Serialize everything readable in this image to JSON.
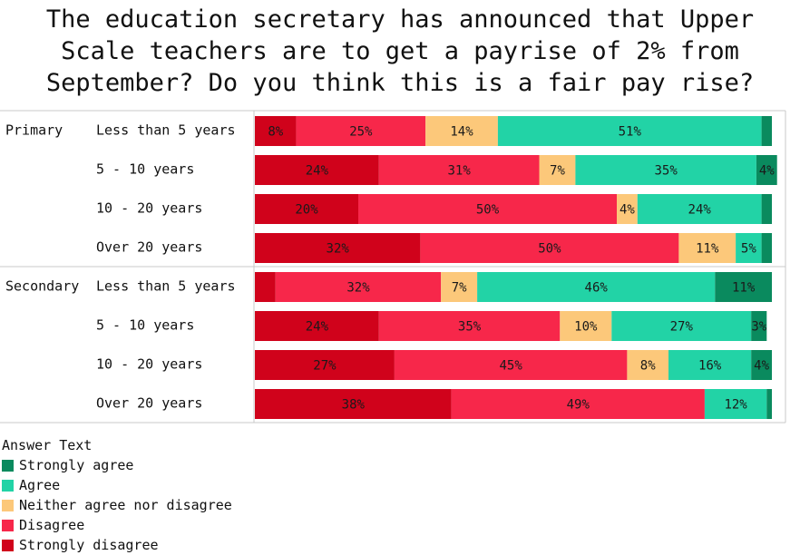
{
  "chart_data": {
    "type": "bar",
    "orientation": "horizontal",
    "stacked": true,
    "title_lines": [
      "The education secretary has announced that Upper",
      "Scale teachers are to get a payrise of 2% from",
      "September? Do you think this is a fair pay rise?"
    ],
    "groups": [
      {
        "name": "Primary",
        "rows": [
          {
            "label": "Less than 5 years",
            "values": [
              8,
              25,
              14,
              51,
              2
            ],
            "labels": [
              "8%",
              "25%",
              "14%",
              "51%",
              ""
            ]
          },
          {
            "label": "5 - 10 years",
            "values": [
              24,
              31,
              7,
              35,
              4
            ],
            "labels": [
              "24%",
              "31%",
              "7%",
              "35%",
              "4%"
            ]
          },
          {
            "label": "10 - 20 years",
            "values": [
              20,
              50,
              4,
              24,
              2
            ],
            "labels": [
              "20%",
              "50%",
              "4%",
              "24%",
              ""
            ]
          },
          {
            "label": "Over 20 years",
            "values": [
              32,
              50,
              11,
              5,
              2
            ],
            "labels": [
              "32%",
              "50%",
              "11%",
              "5%",
              ""
            ]
          }
        ]
      },
      {
        "name": "Secondary",
        "rows": [
          {
            "label": "Less than 5 years",
            "values": [
              4,
              32,
              7,
              46,
              11
            ],
            "labels": [
              "",
              "32%",
              "7%",
              "46%",
              "11%"
            ]
          },
          {
            "label": "5 - 10 years",
            "values": [
              24,
              35,
              10,
              27,
              3
            ],
            "labels": [
              "24%",
              "35%",
              "10%",
              "27%",
              "3%"
            ]
          },
          {
            "label": "10 - 20 years",
            "values": [
              27,
              45,
              8,
              16,
              4
            ],
            "labels": [
              "27%",
              "45%",
              "8%",
              "16%",
              "4%"
            ]
          },
          {
            "label": "Over 20 years",
            "values": [
              38,
              49,
              0,
              12,
              1
            ],
            "labels": [
              "38%",
              "49%",
              "",
              "12%",
              ""
            ]
          }
        ]
      }
    ],
    "series": [
      {
        "name": "Strongly disagree",
        "color": "#d0021b"
      },
      {
        "name": "Disagree",
        "color": "#f7274a"
      },
      {
        "name": "Neither agree nor disagree",
        "color": "#fcc87a"
      },
      {
        "name": "Agree",
        "color": "#22d3a6"
      },
      {
        "name": "Strongly agree",
        "color": "#0a8a5e"
      }
    ],
    "legend_title": "Answer Text",
    "legend_order": [
      "Strongly agree",
      "Agree",
      "Neither agree nor disagree",
      "Disagree",
      "Strongly disagree"
    ],
    "xlim": [
      0,
      100
    ],
    "legend_position": "bottom-left"
  }
}
